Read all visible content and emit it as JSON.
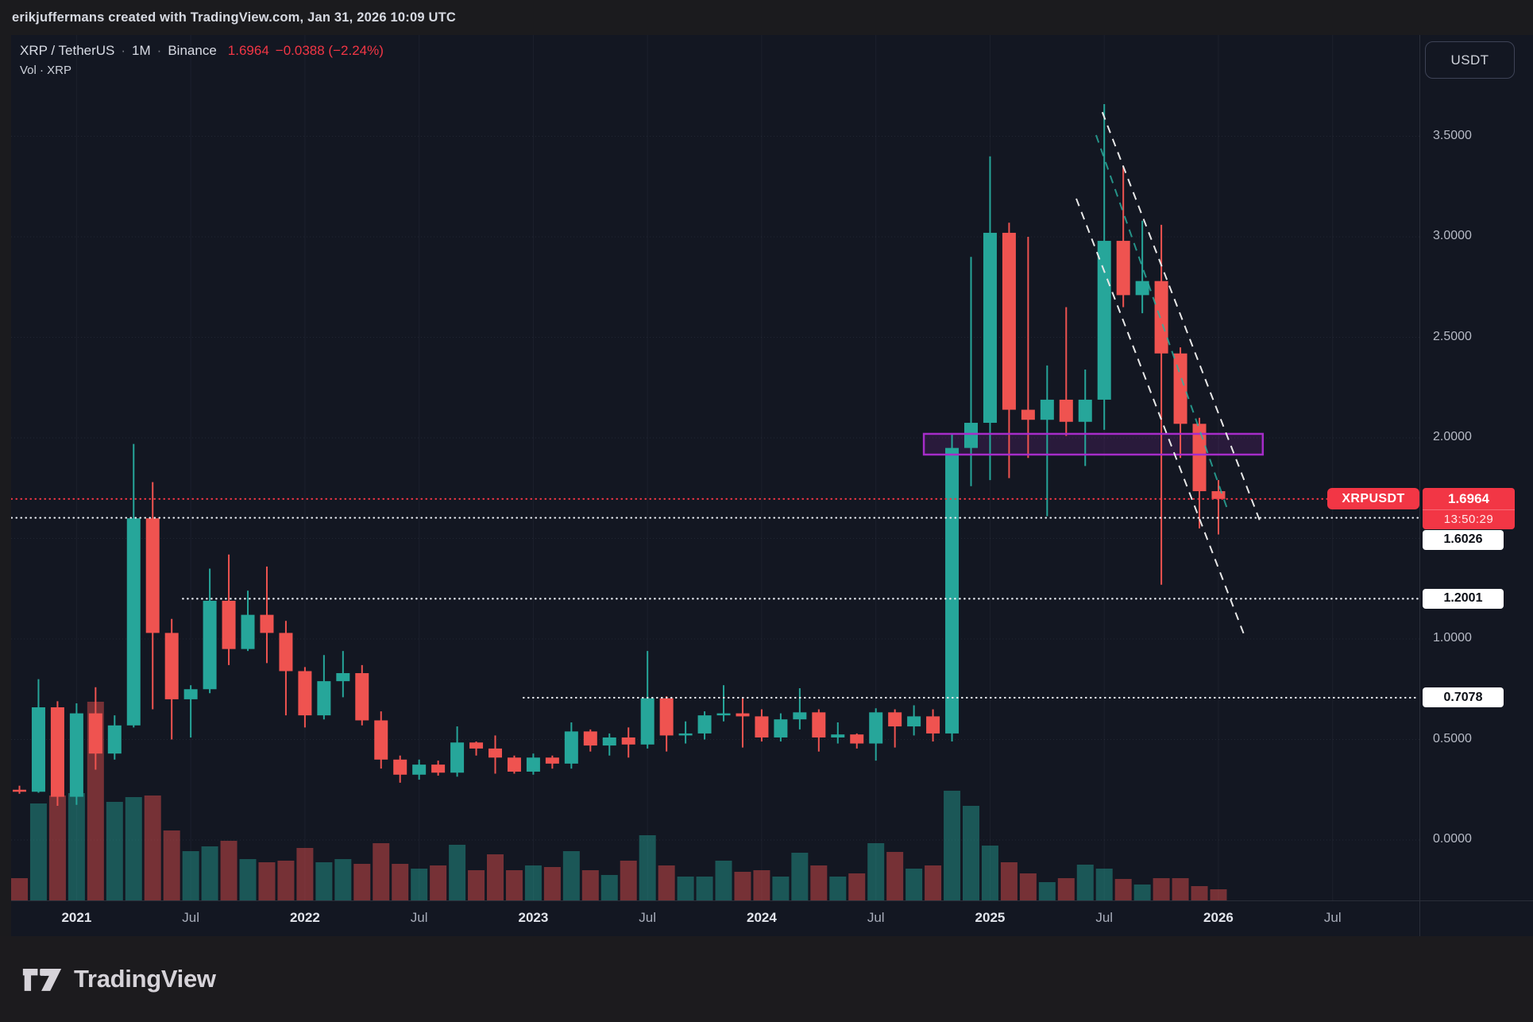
{
  "attribution": {
    "text": "erikjuffermans created with TradingView.com, Jan 31, 2026 10:09 UTC"
  },
  "legend": {
    "symbol": "XRP / TetherUS",
    "dot": "·",
    "interval": "1M",
    "exchange": "Binance",
    "last_price": "1.6964",
    "change": "−0.0388 (−2.24%)",
    "volume_row": "Vol · XRP"
  },
  "price_axis": {
    "currency_button": "USDT",
    "ticks": [
      {
        "label": "3.5000",
        "price": 3.5
      },
      {
        "label": "3.0000",
        "price": 3.0
      },
      {
        "label": "2.5000",
        "price": 2.5
      },
      {
        "label": "2.0000",
        "price": 2.0
      },
      {
        "label": "1.0000",
        "price": 1.0
      },
      {
        "label": "0.5000",
        "price": 0.5
      },
      {
        "label": "0.0000",
        "price": 0.0
      }
    ],
    "last_price_label": {
      "tag": "XRPUSDT",
      "price": "1.6964",
      "countdown": "13:50:29",
      "color": "#f23645"
    },
    "level_labels": [
      {
        "label": "1.6026",
        "price": 1.6026
      },
      {
        "label": "1.2001",
        "price": 1.2001
      },
      {
        "label": "0.7078",
        "price": 0.7078
      }
    ]
  },
  "time_axis": {
    "labels": [
      {
        "text": "2021",
        "month": 3,
        "major": true
      },
      {
        "text": "Jul",
        "month": 9,
        "major": false
      },
      {
        "text": "2022",
        "month": 15,
        "major": true
      },
      {
        "text": "Jul",
        "month": 21,
        "major": false
      },
      {
        "text": "2023",
        "month": 27,
        "major": true
      },
      {
        "text": "Jul",
        "month": 33,
        "major": false
      },
      {
        "text": "2024",
        "month": 39,
        "major": true
      },
      {
        "text": "Jul",
        "month": 45,
        "major": false
      },
      {
        "text": "2025",
        "month": 51,
        "major": true
      },
      {
        "text": "Jul",
        "month": 57,
        "major": false
      },
      {
        "text": "2026",
        "month": 63,
        "major": true
      },
      {
        "text": "Jul",
        "month": 69,
        "major": false
      }
    ]
  },
  "footer": {
    "brand": "TradingView"
  },
  "chart_data": {
    "type": "candlestick",
    "symbol": "XRP/USDT",
    "exchange": "Binance",
    "interval": "1M",
    "title": "XRP / TetherUS · 1M · Binance",
    "ylim": [
      0,
      3.85
    ],
    "grid_prices": [
      0,
      0.5,
      1.0,
      1.5,
      2.0,
      2.5,
      3.0,
      3.5
    ],
    "up_color": "#26a69a",
    "down_color": "#ef5350",
    "volume_up_color": "rgba(38,166,154,0.45)",
    "volume_down_color": "rgba(239,83,80,0.45)",
    "columns": [
      "month",
      "open",
      "high",
      "low",
      "close",
      "volume_rel"
    ],
    "candles": [
      [
        "2020-10",
        0.25,
        0.27,
        0.23,
        0.24,
        28
      ],
      [
        "2020-11",
        0.24,
        0.8,
        0.235,
        0.66,
        122
      ],
      [
        "2020-12",
        0.66,
        0.69,
        0.17,
        0.215,
        132
      ],
      [
        "2021-01",
        0.215,
        0.68,
        0.175,
        0.63,
        135
      ],
      [
        "2021-02",
        0.63,
        0.76,
        0.35,
        0.43,
        250
      ],
      [
        "2021-03",
        0.43,
        0.62,
        0.4,
        0.57,
        124
      ],
      [
        "2021-04",
        0.57,
        1.97,
        0.56,
        1.6,
        130
      ],
      [
        "2021-05",
        1.6,
        1.78,
        0.65,
        1.03,
        132
      ],
      [
        "2021-06",
        1.03,
        1.1,
        0.5,
        0.7,
        88
      ],
      [
        "2021-07",
        0.7,
        0.77,
        0.51,
        0.75,
        62
      ],
      [
        "2021-08",
        0.75,
        1.35,
        0.73,
        1.19,
        68
      ],
      [
        "2021-09",
        1.19,
        1.42,
        0.87,
        0.95,
        75
      ],
      [
        "2021-10",
        0.95,
        1.24,
        0.94,
        1.12,
        52
      ],
      [
        "2021-11",
        1.12,
        1.36,
        0.88,
        1.03,
        48
      ],
      [
        "2021-12",
        1.03,
        1.09,
        0.62,
        0.84,
        50
      ],
      [
        "2022-01",
        0.84,
        0.86,
        0.56,
        0.62,
        66
      ],
      [
        "2022-02",
        0.62,
        0.92,
        0.6,
        0.79,
        48
      ],
      [
        "2022-03",
        0.79,
        0.94,
        0.71,
        0.83,
        52
      ],
      [
        "2022-04",
        0.83,
        0.87,
        0.57,
        0.595,
        46
      ],
      [
        "2022-05",
        0.595,
        0.64,
        0.355,
        0.4,
        72
      ],
      [
        "2022-06",
        0.4,
        0.42,
        0.285,
        0.325,
        46
      ],
      [
        "2022-07",
        0.325,
        0.4,
        0.3,
        0.375,
        40
      ],
      [
        "2022-08",
        0.375,
        0.395,
        0.32,
        0.335,
        44
      ],
      [
        "2022-09",
        0.335,
        0.565,
        0.315,
        0.485,
        70
      ],
      [
        "2022-10",
        0.485,
        0.49,
        0.42,
        0.455,
        38
      ],
      [
        "2022-11",
        0.455,
        0.52,
        0.33,
        0.41,
        58
      ],
      [
        "2022-12",
        0.41,
        0.42,
        0.33,
        0.34,
        38
      ],
      [
        "2023-01",
        0.34,
        0.43,
        0.325,
        0.41,
        44
      ],
      [
        "2023-02",
        0.41,
        0.42,
        0.355,
        0.38,
        42
      ],
      [
        "2023-03",
        0.38,
        0.585,
        0.355,
        0.54,
        62
      ],
      [
        "2023-04",
        0.54,
        0.55,
        0.44,
        0.47,
        38
      ],
      [
        "2023-05",
        0.47,
        0.53,
        0.42,
        0.51,
        32
      ],
      [
        "2023-06",
        0.51,
        0.56,
        0.41,
        0.475,
        50
      ],
      [
        "2023-07",
        0.475,
        0.94,
        0.455,
        0.705,
        82
      ],
      [
        "2023-08",
        0.705,
        0.715,
        0.44,
        0.52,
        44
      ],
      [
        "2023-09",
        0.52,
        0.59,
        0.48,
        0.53,
        30
      ],
      [
        "2023-10",
        0.53,
        0.64,
        0.5,
        0.62,
        30
      ],
      [
        "2023-11",
        0.62,
        0.77,
        0.59,
        0.63,
        50
      ],
      [
        "2023-12",
        0.63,
        0.71,
        0.46,
        0.615,
        36
      ],
      [
        "2024-01",
        0.615,
        0.65,
        0.49,
        0.51,
        38
      ],
      [
        "2024-02",
        0.51,
        0.63,
        0.49,
        0.6,
        30
      ],
      [
        "2024-03",
        0.6,
        0.755,
        0.55,
        0.635,
        60
      ],
      [
        "2024-04",
        0.635,
        0.65,
        0.44,
        0.51,
        44
      ],
      [
        "2024-05",
        0.51,
        0.585,
        0.48,
        0.525,
        30
      ],
      [
        "2024-06",
        0.525,
        0.53,
        0.455,
        0.48,
        34
      ],
      [
        "2024-07",
        0.48,
        0.655,
        0.395,
        0.635,
        72
      ],
      [
        "2024-08",
        0.635,
        0.65,
        0.46,
        0.565,
        61
      ],
      [
        "2024-09",
        0.565,
        0.67,
        0.52,
        0.615,
        40
      ],
      [
        "2024-10",
        0.615,
        0.65,
        0.49,
        0.53,
        44
      ],
      [
        "2024-11",
        0.53,
        2.02,
        0.49,
        1.95,
        138
      ],
      [
        "2024-12",
        1.95,
        2.9,
        1.76,
        2.075,
        119
      ],
      [
        "2025-01",
        2.075,
        3.4,
        1.79,
        3.02,
        69
      ],
      [
        "2025-02",
        3.02,
        3.07,
        1.8,
        2.14,
        48
      ],
      [
        "2025-03",
        2.14,
        3.0,
        1.9,
        2.09,
        34
      ],
      [
        "2025-04",
        2.09,
        2.36,
        1.61,
        2.19,
        23
      ],
      [
        "2025-05",
        2.19,
        2.65,
        2.01,
        2.08,
        28
      ],
      [
        "2025-06",
        2.08,
        2.34,
        1.86,
        2.19,
        45
      ],
      [
        "2025-07",
        2.19,
        3.66,
        2.04,
        2.98,
        40
      ],
      [
        "2025-08",
        2.98,
        3.35,
        2.65,
        2.71,
        27
      ],
      [
        "2025-09",
        2.71,
        3.08,
        2.62,
        2.78,
        20
      ],
      [
        "2025-10",
        2.78,
        3.06,
        1.27,
        2.42,
        28
      ],
      [
        "2025-11",
        2.42,
        2.45,
        1.9,
        2.07,
        28
      ],
      [
        "2025-12",
        2.07,
        2.1,
        1.55,
        1.735,
        18
      ],
      [
        "2026-01",
        1.735,
        1.79,
        1.52,
        1.6964,
        14
      ]
    ],
    "horizontal_lines": [
      {
        "price": 1.6964,
        "color": "#f23645",
        "style": "dotted",
        "role": "last-price",
        "from_month": 0
      },
      {
        "price": 1.6026,
        "color": "#eceff5",
        "style": "dotted",
        "role": "level",
        "from_month": 0
      },
      {
        "price": 1.2001,
        "color": "#eceff5",
        "style": "dotted",
        "role": "level",
        "from_month": 9
      },
      {
        "price": 0.7078,
        "color": "#eceff5",
        "style": "dotted",
        "role": "level",
        "from_month": 26.9
      }
    ],
    "drawings": {
      "rectangle": {
        "month_start": 47.52,
        "month_end": 65.33,
        "price_top": 2.02,
        "price_bottom": 1.917,
        "stroke": "#a62cc9",
        "fill": "rgba(160,45,190,0.16)"
      },
      "trendlines": [
        {
          "m1": 56.9,
          "p1": 3.62,
          "m2": 65.17,
          "p2": 1.589,
          "color": "#e8e8e8",
          "dashed": true
        },
        {
          "m1": 55.53,
          "p1": 3.19,
          "m2": 64.4,
          "p2": 1.008,
          "color": "#e8e8e8",
          "dashed": true
        },
        {
          "m1": 56.57,
          "p1": 3.506,
          "m2": 63.46,
          "p2": 1.648,
          "color": "rgba(43,179,162,0.8)",
          "dashed": true
        }
      ]
    }
  }
}
